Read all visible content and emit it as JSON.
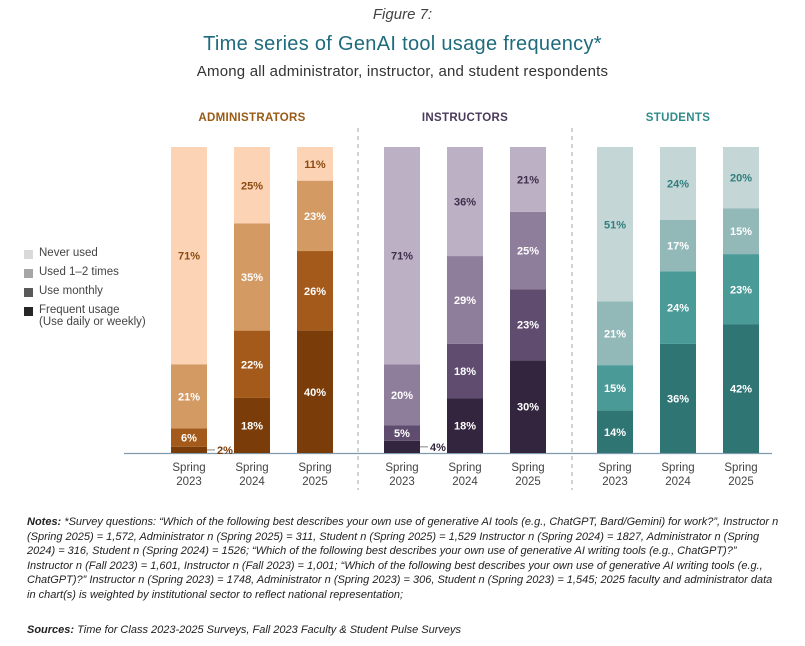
{
  "figure_label": "Figure 7:",
  "legend": [
    {
      "label": "Never used",
      "color": "#d9d9d9"
    },
    {
      "label": "Used 1–2 times",
      "color": "#a6a6a6"
    },
    {
      "label": "Use monthly",
      "color": "#595959"
    },
    {
      "label": "Frequent usage",
      "sublabel": "(Use daily or weekly)",
      "color": "#262626"
    }
  ],
  "chart_data": {
    "type": "bar",
    "stacked": true,
    "title": "Time series of GenAI tool usage frequency*",
    "subtitle": "Among all administrator, instructor, and student respondents",
    "stack_order": [
      "Frequent usage",
      "Use monthly",
      "Used 1–2 times",
      "Never used"
    ],
    "ylim": [
      0,
      100
    ],
    "groups": [
      {
        "name": "ADMINISTRATORS",
        "label_color": "#9a5a14",
        "colors": [
          "#7a3c08",
          "#a45a1a",
          "#d49a64",
          "#fcd3b4"
        ],
        "bars": [
          {
            "period": "Spring",
            "year": "2023",
            "values": [
              2,
              6,
              21,
              71
            ]
          },
          {
            "period": "Spring",
            "year": "2024",
            "values": [
              18,
              22,
              35,
              25
            ]
          },
          {
            "period": "Spring",
            "year": "2025",
            "values": [
              40,
              26,
              23,
              11
            ]
          }
        ]
      },
      {
        "name": "INSTRUCTORS",
        "label_color": "#4a3a5c",
        "colors": [
          "#33253d",
          "#5f4c6f",
          "#8f7d9c",
          "#bbb0c4"
        ],
        "bars": [
          {
            "period": "Spring",
            "year": "2023",
            "values": [
              4,
              5,
              20,
              71
            ]
          },
          {
            "period": "Spring",
            "year": "2024",
            "values": [
              18,
              18,
              29,
              36
            ]
          },
          {
            "period": "Spring",
            "year": "2025",
            "values": [
              30,
              23,
              25,
              21
            ]
          }
        ]
      },
      {
        "name": "STUDENTS",
        "label_color": "#2f8c8a",
        "colors": [
          "#2f7574",
          "#4a9a98",
          "#93b8b8",
          "#c5d6d6"
        ],
        "bars": [
          {
            "period": "Spring",
            "year": "2023",
            "values": [
              14,
              15,
              21,
              51
            ]
          },
          {
            "period": "Spring",
            "year": "2024",
            "values": [
              36,
              24,
              17,
              24
            ]
          },
          {
            "period": "Spring",
            "year": "2025",
            "values": [
              42,
              23,
              15,
              20
            ]
          }
        ]
      }
    ]
  },
  "notes": {
    "label": "Notes:",
    "text": "*Survey questions: “Which of the following best describes your own use of generative AI tools (e.g., ChatGPT, Bard/Gemini) for work?”, Instructor n (Spring 2025) = 1,572, Administrator n (Spring 2025) = 311, Student n (Spring 2025) = 1,529 Instructor n (Spring 2024) = 1827, Administrator n (Spring 2024) = 316, Student n (Spring 2024) = 1526; “Which of the following best describes your own use of generative AI writing tools (e.g., ChatGPT)?” Instructor n (Fall 2023) = 1,601, Instructor n (Fall 2023) = 1,001; “Which of the following best describes your own use of generative AI writing tools (e.g., ChatGPT)?” Instructor n (Spring 2023) = 1748, Administrator n (Spring 2023) = 306, Student n (Spring 2023) = 1,545; 2025 faculty and administrator data in chart(s) is weighted by institutional sector to reflect national representation;"
  },
  "sources": {
    "label": "Sources:",
    "text": "Time for Class 2023-2025 Surveys, Fall 2023 Faculty & Student Pulse Surveys"
  }
}
